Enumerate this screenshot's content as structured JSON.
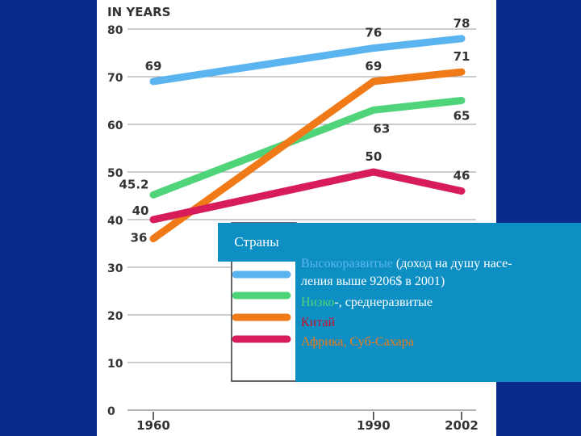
{
  "colors": {
    "background": "#0a2a8c",
    "panel": "#ffffff",
    "legend_bg": "#0d8fc4",
    "high_income": "#5ab4f0",
    "mid_income": "#4fd47a",
    "china": "#f07a18",
    "africa": "#d81c5a",
    "axis_text": "#333333",
    "grid": "#999999"
  },
  "legend": {
    "header": "Страны",
    "items": [
      {
        "key": "high_income",
        "label_colored": "Высокоразвитые",
        "label_rest": " (доход на душу насе-",
        "label_rest2": "ления выше 9206$ в 2001)"
      },
      {
        "key": "mid_income",
        "label_colored": "Низко",
        "label_rest": "-, среднеразвитые"
      },
      {
        "key": "china",
        "label_colored": "Китай",
        "label_rest": ""
      },
      {
        "key": "africa",
        "label_colored": "Африка, Суб-Сахара",
        "label_rest": ""
      }
    ]
  },
  "chart_data": {
    "type": "line",
    "ylabel": "IN YEARS",
    "xlabel": "",
    "title": "",
    "ylim": [
      0,
      80
    ],
    "yticks": [
      0,
      10,
      20,
      30,
      40,
      50,
      60,
      70,
      80
    ],
    "x": [
      "1960",
      "1990",
      "2002"
    ],
    "x_values": [
      1960,
      1990,
      2002
    ],
    "series": [
      {
        "name": "Высокоразвитые",
        "color_key": "high_income",
        "values": [
          69,
          76,
          78
        ],
        "labels": [
          "69",
          "76",
          "78"
        ]
      },
      {
        "name": "Низко-, среднеразвитые",
        "color_key": "mid_income",
        "values": [
          45.2,
          63,
          65
        ],
        "labels": [
          "45.2",
          "63",
          "65"
        ]
      },
      {
        "name": "Китай",
        "color_key": "china",
        "values": [
          36,
          69,
          71
        ],
        "labels": [
          "36",
          "69",
          "71"
        ]
      },
      {
        "name": "Африка, Суб-Сахара",
        "color_key": "africa",
        "values": [
          40,
          50,
          46
        ],
        "labels": [
          "40",
          "50",
          "46"
        ]
      }
    ]
  }
}
